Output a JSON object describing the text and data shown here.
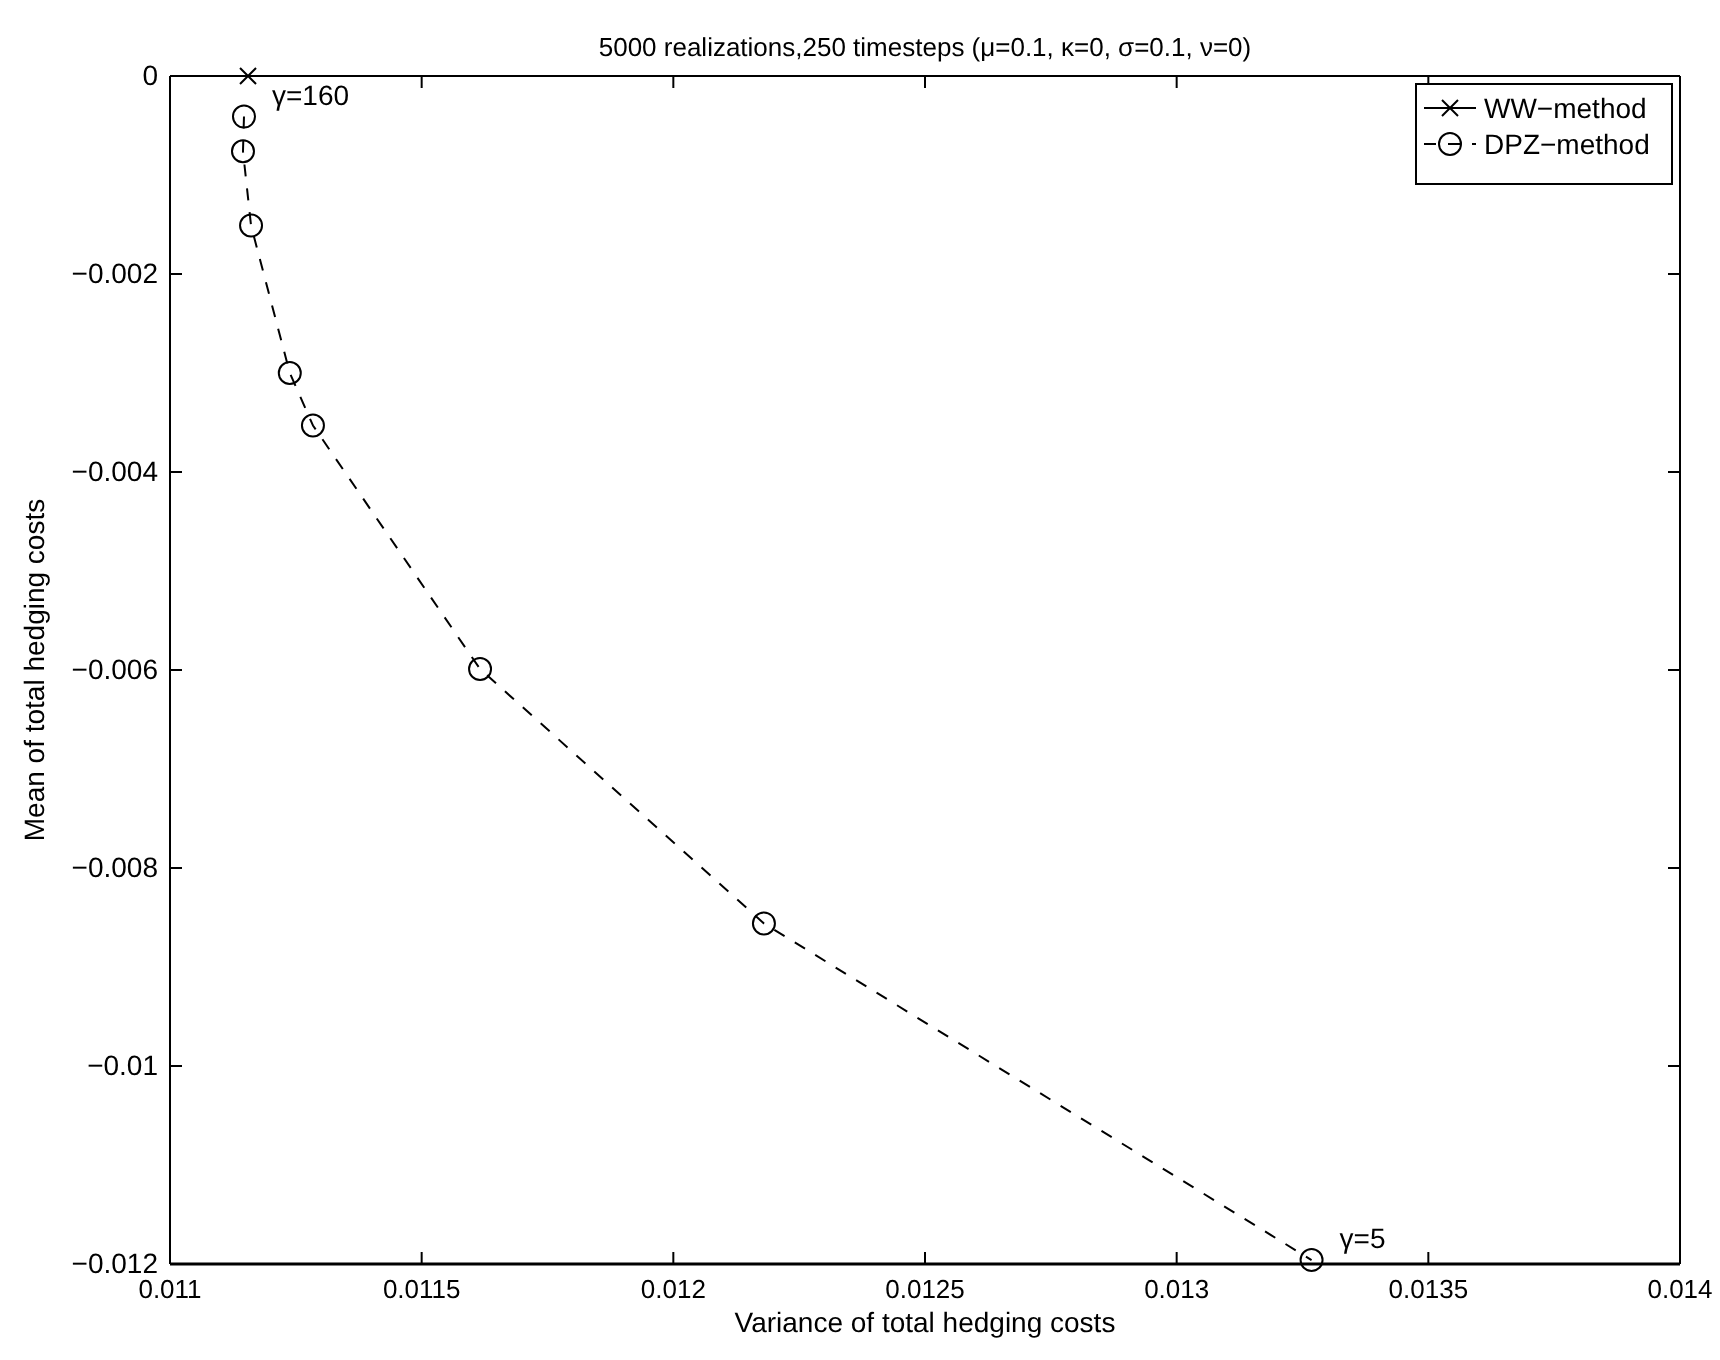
{
  "chart_data": {
    "type": "line",
    "title": "5000 realizations,250 timesteps (μ=0.1, κ=0, σ=0.1, ν=0)",
    "xlabel": "Variance of total hedging costs",
    "ylabel": "Mean of total hedging costs",
    "xlim": [
      0.011,
      0.014
    ],
    "xticks": [
      0.011,
      0.0115,
      0.012,
      0.0125,
      0.013,
      0.0135,
      0.014
    ],
    "ylim": [
      -0.012,
      0
    ],
    "yticks": [
      {
        "value": -0.012,
        "label": "−0.012"
      },
      {
        "value": -0.01,
        "label": "−0.01"
      },
      {
        "value": -0.008,
        "label": "−0.008"
      },
      {
        "value": -0.006,
        "label": "−0.006"
      },
      {
        "value": -0.004,
        "label": "−0.004"
      },
      {
        "value": -0.002,
        "label": "−0.002"
      },
      0
    ],
    "grid": false,
    "legend": "top right",
    "series": [
      {
        "name": "WW−method",
        "color": "#000000",
        "marker": "cross",
        "line_style": "solid",
        "x": [
          0.011155
        ],
        "values": [
          0
        ]
      },
      {
        "name": "DPZ−method",
        "color": "#000000",
        "marker": "circle",
        "line_style": "dashed",
        "x": [
          0.011147,
          0.011145,
          0.011161,
          0.011238,
          0.011284,
          0.011616,
          0.01218,
          0.013268
        ],
        "values": [
          -0.00041,
          -0.00076,
          -0.00151,
          -0.003,
          -0.00353,
          -0.00599,
          -0.00856,
          -0.01196
        ]
      }
    ],
    "annotations": [
      {
        "text": "γ=160",
        "x": 0.011147,
        "y": -0.00041
      },
      {
        "text": "γ=5",
        "x": 0.013268,
        "y": -0.01196
      }
    ]
  }
}
